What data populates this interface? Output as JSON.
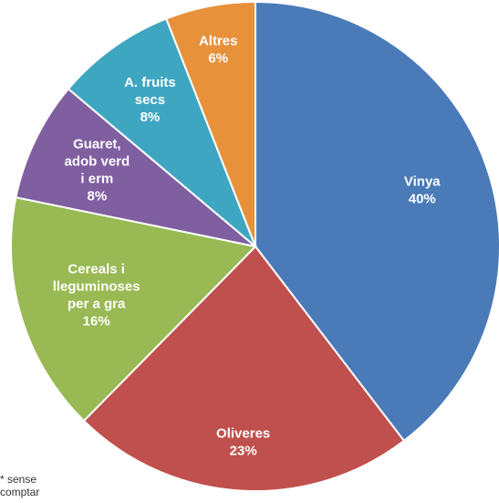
{
  "chart_data": {
    "type": "pie",
    "start_angle_deg": 0,
    "direction": "clockwise",
    "slices": [
      {
        "name": "Vinya",
        "value": 40,
        "label_lines": [
          "Vinya",
          "40%"
        ],
        "color": "#4a7ab8"
      },
      {
        "name": "Oliveres",
        "value": 23,
        "label_lines": [
          "Oliveres",
          "23%"
        ],
        "color": "#c0504d"
      },
      {
        "name": "Cereals i lleguminoses per a gra",
        "value": 16,
        "label_lines": [
          "Cereals i",
          "lleguminoses",
          "per a gra",
          "16%"
        ],
        "color": "#98b954"
      },
      {
        "name": "Guaret, adob verd i erm",
        "value": 8,
        "label_lines": [
          "Guaret,",
          "adob verd",
          "i erm",
          "8%"
        ],
        "color": "#7f5fa0"
      },
      {
        "name": "A. fruits secs",
        "value": 8,
        "label_lines": [
          "A. fruits",
          "secs",
          "8%"
        ],
        "color": "#3fa6c2"
      },
      {
        "name": "Altres",
        "value": 6,
        "label_lines": [
          "Altres",
          "6%"
        ],
        "color": "#e8913b"
      }
    ]
  },
  "footnote": {
    "line1": "* sense",
    "line2": "comptar"
  }
}
